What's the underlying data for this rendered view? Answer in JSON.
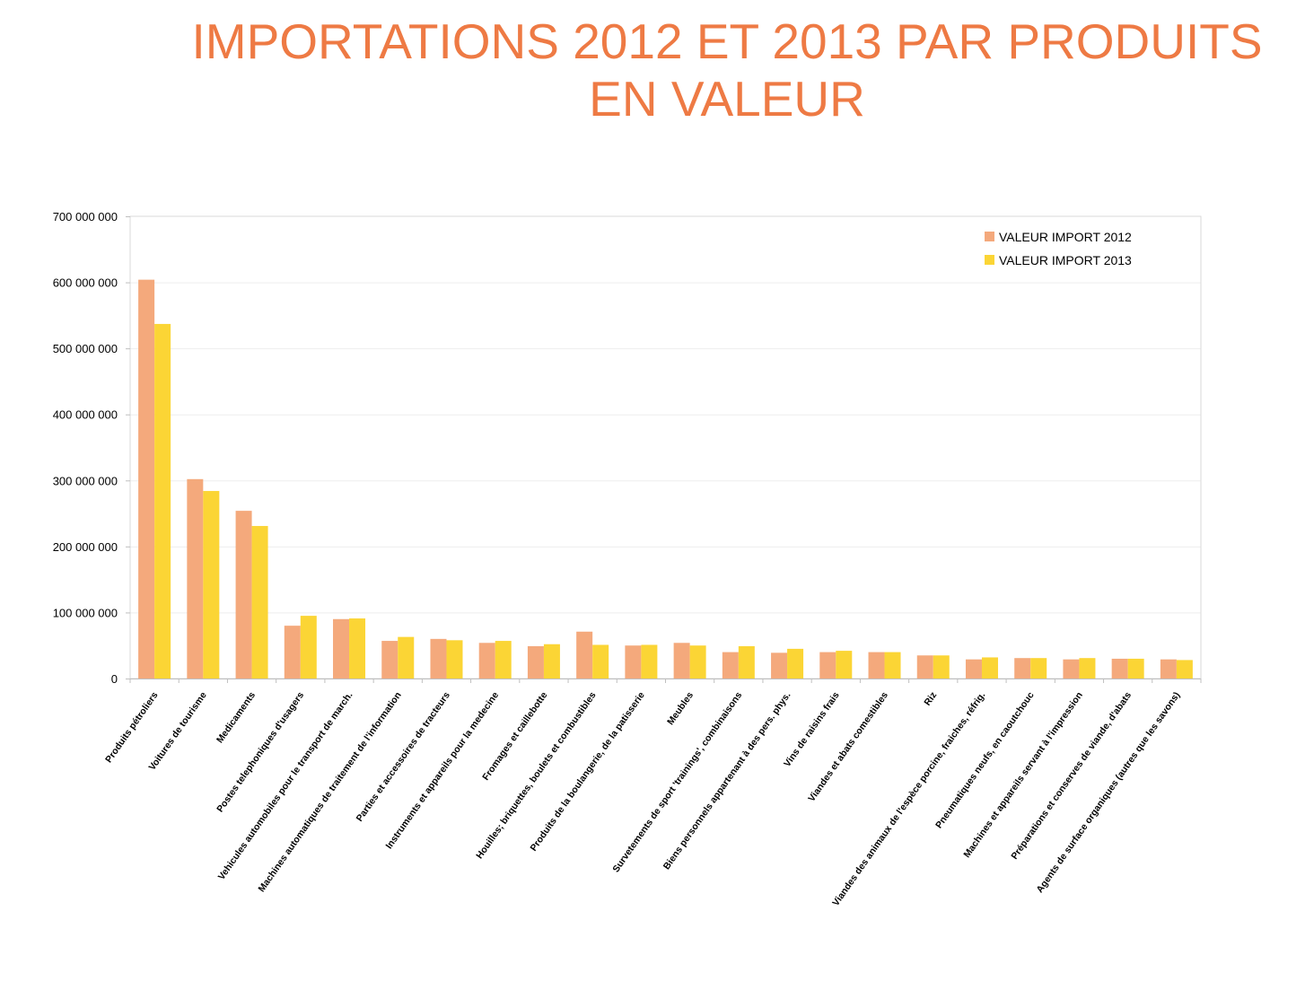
{
  "chart_data": {
    "type": "bar",
    "title_line1": "IMPORTATIONS 2012 ET 2013 PAR PRODUITS",
    "title_line2": "EN VALEUR",
    "ylim": [
      0,
      700000000
    ],
    "y_ticks": [
      "0",
      "100 000 000",
      "200 000 000",
      "300 000 000",
      "400 000 000",
      "500 000 000",
      "600 000 000",
      "700 000 000"
    ],
    "y_tick_values": [
      0,
      100000000,
      200000000,
      300000000,
      400000000,
      500000000,
      600000000,
      700000000
    ],
    "grid": true,
    "legend_position": "top-right",
    "categories": [
      "Produits pétroliers",
      "Voitures de tourisme",
      "Medicaments",
      "Postes telephoniques d'usagers",
      "Vehicules automobiles pour le transport de march.",
      "Machines automatiques de traitement de l'information",
      "Parties et accessoires de tracteurs",
      "Instruments et appareils pour la medecine",
      "Fromages et caillebotte",
      "Houilles; briquettes, boulets et combustibles",
      "Produits de la boulangerie, de la patisserie",
      "Meubles",
      "Survetements de sport 'trainings', combinaisons",
      "Biens personnels appartenant à des pers. phys.",
      "Vins de raisins frais",
      "Viandes et abats comestibles",
      "Riz",
      "Viandes des animaux de l'espèce porcine, fraiches, réfrig.",
      "Pneumatiques neufs, en caoutchouc",
      "Machines et appareils servant à l'impression",
      "Préparations et conserves de viande, d'abats",
      "Agents de surface organiques (autres que les savons)"
    ],
    "series": [
      {
        "name": "VALEUR IMPORT 2012",
        "color": "#f4a97c",
        "values": [
          604000000,
          302000000,
          254000000,
          80000000,
          90000000,
          57000000,
          60000000,
          54000000,
          49000000,
          71000000,
          50000000,
          54000000,
          40000000,
          39000000,
          40000000,
          40000000,
          35000000,
          29000000,
          31000000,
          29000000,
          30000000,
          29000000
        ]
      },
      {
        "name": "VALEUR IMPORT 2013",
        "color": "#fbd535",
        "values": [
          537000000,
          284000000,
          231000000,
          95000000,
          91000000,
          63000000,
          58000000,
          57000000,
          52000000,
          51000000,
          51000000,
          50000000,
          49000000,
          45000000,
          42000000,
          40000000,
          35000000,
          32000000,
          31000000,
          31000000,
          30000000,
          28000000
        ]
      }
    ]
  }
}
